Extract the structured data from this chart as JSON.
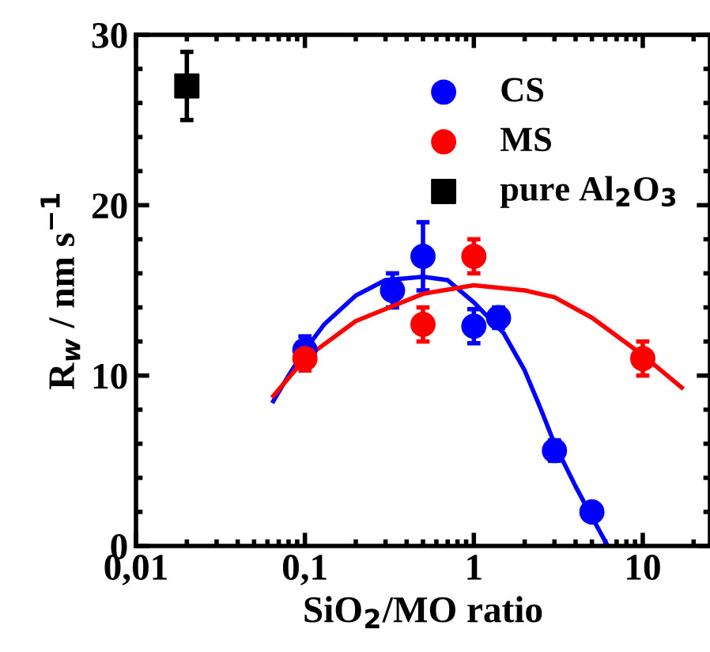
{
  "chart_data": {
    "type": "scatter",
    "xlabel": "SiO$_{2}$/MO ratio",
    "ylabel": "R$_{w}$ / nm s$^{−1}$",
    "log": "x",
    "xlim": [
      0.01,
      25
    ],
    "xticks": [
      {
        "value": 0.01,
        "label": "0,01"
      },
      {
        "value": 0.1,
        "label": "0,1"
      },
      1,
      10
    ],
    "ylim": [
      0,
      30
    ],
    "yticks": [
      0,
      10,
      20,
      30
    ],
    "legend": "top right",
    "grid": false,
    "series": [
      {
        "name": "CS",
        "color": "#0000ff",
        "marker": "circle",
        "x": [
          0.1,
          0.33,
          0.5,
          1.0,
          1.4,
          3.0,
          5.0
        ],
        "values": [
          11.5,
          15,
          17,
          12.9,
          13.4,
          5.6,
          2.0
        ],
        "errors": [
          0.8,
          1,
          2,
          1,
          0.6,
          0.6,
          null
        ]
      },
      {
        "name": "MS",
        "color": "#ff0000",
        "marker": "circle",
        "x": [
          0.1,
          0.5,
          1.0,
          10
        ],
        "values": [
          11.0,
          13.0,
          17.0,
          11.0
        ],
        "errors": [
          0.7,
          1,
          1,
          1
        ]
      },
      {
        "name": "pure Al$_{2}$O$_{3}$",
        "color": "#000000",
        "marker": "square",
        "x": [
          0.02
        ],
        "values": [
          27
        ],
        "errors": [
          2
        ]
      },
      {
        "type": "line",
        "color": "#0000ff",
        "marker": "none",
        "x": [
          0.065,
          0.08,
          0.1,
          0.13,
          0.2,
          0.3,
          0.5,
          0.7,
          1.0,
          1.5,
          2.0,
          2.5,
          3,
          4,
          5,
          6.2
        ],
        "values": [
          8.5,
          10,
          11.5,
          13,
          14.7,
          15.6,
          15.8,
          15.6,
          14.3,
          12.5,
          10.3,
          8,
          6,
          3.5,
          1.7,
          0
        ]
      },
      {
        "type": "line",
        "color": "#ff0000",
        "marker": "none",
        "x": [
          0.065,
          0.1,
          0.2,
          0.5,
          1,
          2,
          3,
          5,
          10,
          17
        ],
        "values": [
          8.8,
          11.0,
          13.2,
          14.8,
          15.3,
          15.0,
          14.6,
          13.4,
          11.2,
          9.3
        ]
      }
    ]
  }
}
